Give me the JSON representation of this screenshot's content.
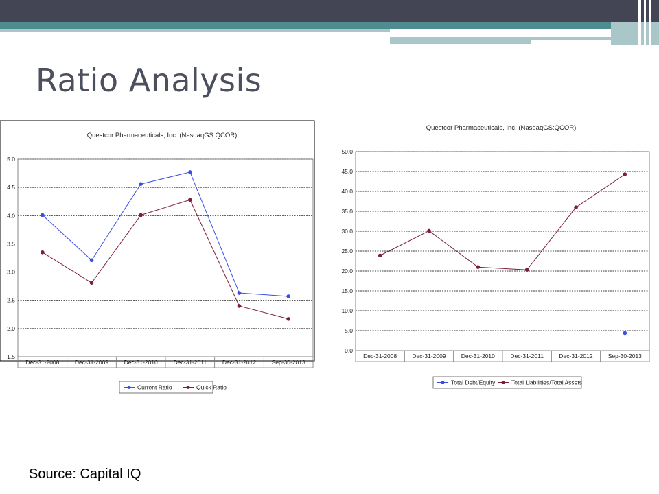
{
  "slide": {
    "title": "Ratio Analysis",
    "source": "Source: Capital IQ"
  },
  "colors": {
    "header_dark": "#434555",
    "header_teal": "#4e8c8f",
    "header_light": "#a9c6c9",
    "title_text": "#4b4f5e",
    "series_blue": "#3b4fe0",
    "series_maroon": "#7a1f35"
  },
  "chart_data": [
    {
      "type": "line",
      "title": "Questcor Pharmaceuticals, Inc. (NasdaqGS:QCOR)",
      "categories": [
        "Dec-31-2008",
        "Dec-31-2009",
        "Dec-31-2010",
        "Dec-31-2011",
        "Dec-31-2012",
        "Sep-30-2013"
      ],
      "yticks": [
        "1.5",
        "2.0",
        "2.5",
        "3.0",
        "3.5",
        "4.0",
        "4.5",
        "5.0"
      ],
      "ylim": [
        1.5,
        5.0
      ],
      "grid": true,
      "legend_position": "bottom-center",
      "series": [
        {
          "name": "Current Ratio",
          "color": "#3b4fe0",
          "values": [
            4.01,
            3.21,
            4.56,
            4.77,
            2.63,
            2.57
          ]
        },
        {
          "name": "Quick Ratio",
          "color": "#7a1f35",
          "values": [
            3.35,
            2.81,
            4.01,
            4.28,
            2.4,
            2.17
          ]
        }
      ]
    },
    {
      "type": "line",
      "title": "Questcor Pharmaceuticals, Inc. (NasdaqGS:QCOR)",
      "categories": [
        "Dec-31-2008",
        "Dec-31-2009",
        "Dec-31-2010",
        "Dec-31-2011",
        "Dec-31-2012",
        "Sep-30-2013"
      ],
      "yticks": [
        "0.0",
        "5.0",
        "10.0",
        "15.0",
        "20.0",
        "25.0",
        "30.0",
        "35.0",
        "40.0",
        "45.0",
        "50.0"
      ],
      "ylim": [
        0,
        50
      ],
      "grid": true,
      "legend_position": "bottom-center",
      "series": [
        {
          "name": "Total Debt/Equity",
          "color": "#3b4fe0",
          "values": [
            null,
            null,
            null,
            null,
            null,
            4.4
          ]
        },
        {
          "name": "Total Liabilities/Total Assets",
          "color": "#7a1f35",
          "values": [
            23.9,
            30.1,
            21.0,
            20.3,
            36.0,
            44.3
          ]
        }
      ]
    }
  ]
}
